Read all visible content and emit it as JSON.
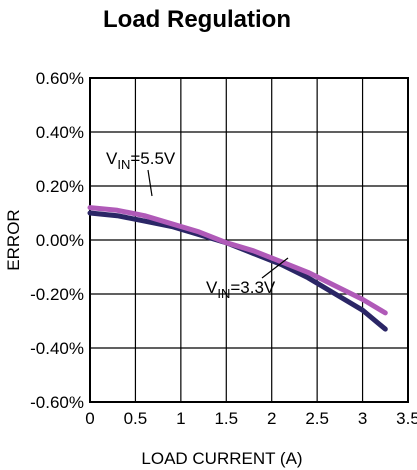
{
  "chart_data": {
    "type": "line",
    "title": "Load Regulation",
    "xlabel": "LOAD CURRENT (A)",
    "ylabel": "ERROR",
    "xlim": [
      0,
      3.5
    ],
    "ylim": [
      -0.6,
      0.6
    ],
    "x_ticks": [
      "0",
      "0.5",
      "1",
      "1.5",
      "2",
      "2.5",
      "3",
      "3.5"
    ],
    "y_ticks": [
      "0.60%",
      "0.40%",
      "0.20%",
      "0.00%",
      "-0.20%",
      "-0.40%",
      "-0.60%"
    ],
    "grid": true,
    "series": [
      {
        "name": "V_IN=5.5V",
        "color": "#b05ab8",
        "x": [
          0.0,
          0.3,
          0.6,
          0.9,
          1.2,
          1.5,
          1.8,
          2.1,
          2.4,
          2.7,
          3.0,
          3.25
        ],
        "values": [
          0.12,
          0.11,
          0.09,
          0.06,
          0.03,
          -0.01,
          -0.04,
          -0.08,
          -0.12,
          -0.17,
          -0.22,
          -0.27
        ]
      },
      {
        "name": "V_IN=3.3V",
        "color": "#2b2666",
        "x": [
          0.0,
          0.3,
          0.6,
          0.9,
          1.2,
          1.5,
          1.8,
          2.1,
          2.4,
          2.7,
          3.0,
          3.25
        ],
        "values": [
          0.1,
          0.09,
          0.07,
          0.05,
          0.02,
          -0.01,
          -0.05,
          -0.09,
          -0.14,
          -0.2,
          -0.26,
          -0.33
        ]
      }
    ],
    "annotations": [
      {
        "main": "V",
        "sub": "IN",
        "rest": "=5.5V",
        "series": 0
      },
      {
        "main": "V",
        "sub": "IN",
        "rest": "=3.3V",
        "series": 1
      }
    ]
  }
}
